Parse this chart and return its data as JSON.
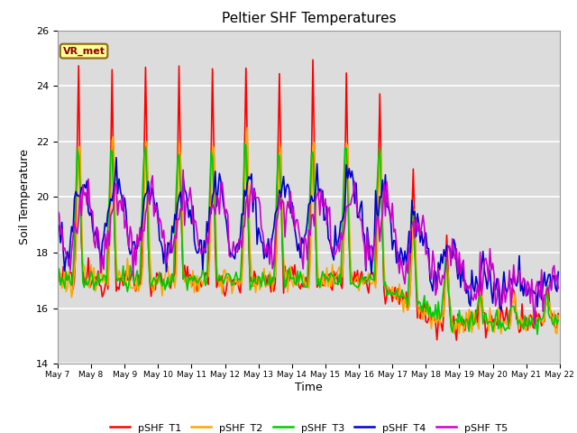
{
  "title": "Peltier SHF Temperatures",
  "xlabel": "Time",
  "ylabel": "Soil Temperature",
  "ylim": [
    14,
    26
  ],
  "yticks": [
    14,
    16,
    18,
    20,
    22,
    24,
    26
  ],
  "annotation_text": "VR_met",
  "annotation_color": "#8B0000",
  "annotation_bg": "#FFFF99",
  "annotation_border": "#8B6914",
  "series": [
    {
      "label": "pSHF_T1",
      "color": "#FF0000"
    },
    {
      "label": "pSHF_T2",
      "color": "#FFA500"
    },
    {
      "label": "pSHF_T3",
      "color": "#00CC00"
    },
    {
      "label": "pSHF_T4",
      "color": "#0000CC"
    },
    {
      "label": "pSHF_T5",
      "color": "#CC00CC"
    }
  ],
  "tick_days": [
    7,
    8,
    9,
    10,
    11,
    12,
    13,
    14,
    15,
    16,
    17,
    18,
    19,
    20,
    21,
    22
  ],
  "bg_color": "#DCDCDC",
  "fig_bg": "#FFFFFF",
  "grid_color": "#FFFFFF",
  "linewidth": 1.2
}
